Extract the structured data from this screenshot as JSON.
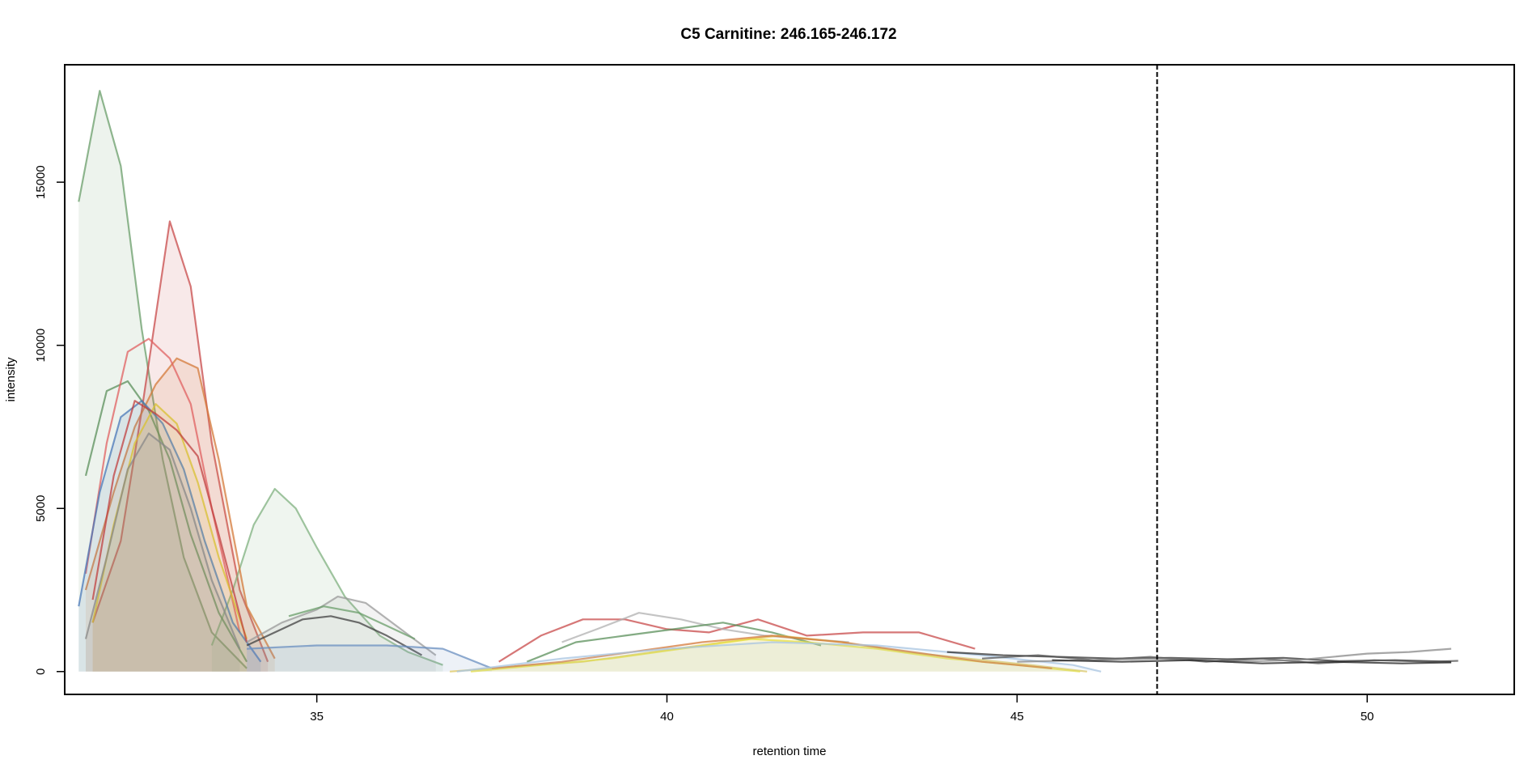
{
  "chart_data": {
    "type": "line",
    "title": "C5 Carnitine: 246.165-246.172",
    "xlabel": "retention time",
    "ylabel": "intensity",
    "xlim": [
      31.4,
      52.1
    ],
    "ylim": [
      -700,
      18600
    ],
    "x_ticks": [
      35,
      40,
      45,
      50
    ],
    "y_ticks": [
      0,
      5000,
      10000,
      15000
    ],
    "x_tick_labels": [
      "35",
      "40",
      "45",
      "50"
    ],
    "y_tick_labels": [
      "0",
      "5000",
      "10000",
      "15000"
    ],
    "grid": false,
    "legend": "none",
    "reference_line": {
      "x": 47.0,
      "style": "dashed",
      "color": "#000000"
    },
    "series": [
      {
        "color": "#6a9e6a",
        "fill": true,
        "x": [
          31.6,
          31.9,
          32.2,
          32.5,
          32.8,
          33.1,
          33.5,
          34.0
        ],
        "values": [
          14400,
          17800,
          15500,
          10500,
          6500,
          3500,
          1200,
          100
        ]
      },
      {
        "color": "#c84a4a",
        "fill": true,
        "x": [
          31.8,
          32.2,
          32.5,
          32.9,
          33.2,
          33.5,
          33.9,
          34.3
        ],
        "values": [
          1500,
          4000,
          8000,
          13800,
          11800,
          7000,
          2500,
          300
        ]
      },
      {
        "color": "#7fb07f",
        "fill": true,
        "x": [
          33.5,
          33.8,
          34.1,
          34.4,
          34.7,
          35.0,
          35.4,
          35.9,
          36.3,
          36.8
        ],
        "values": [
          800,
          2500,
          4500,
          5600,
          5000,
          3800,
          2300,
          1100,
          600,
          200
        ]
      },
      {
        "color": "#5a8f5a",
        "fill": false,
        "x": [
          31.7,
          32.0,
          32.3,
          32.6,
          32.9,
          33.2,
          33.6,
          34.0
        ],
        "values": [
          6000,
          8600,
          8900,
          8000,
          6500,
          4200,
          1800,
          300
        ]
      },
      {
        "color": "#d47a3a",
        "fill": true,
        "x": [
          31.7,
          32.1,
          32.4,
          32.7,
          33.0,
          33.3,
          33.6,
          34.0,
          34.4
        ],
        "values": [
          2500,
          5500,
          7500,
          8800,
          9600,
          9300,
          6500,
          2000,
          400
        ]
      },
      {
        "color": "#e06060",
        "fill": false,
        "x": [
          31.7,
          32.0,
          32.3,
          32.6,
          32.9,
          33.2,
          33.5,
          33.9
        ],
        "values": [
          3000,
          7000,
          9800,
          10200,
          9600,
          8200,
          5000,
          1200
        ]
      },
      {
        "color": "#4a78b8",
        "fill": true,
        "x": [
          31.6,
          31.9,
          32.2,
          32.5,
          32.8,
          33.1,
          33.4,
          33.8,
          34.2
        ],
        "values": [
          2000,
          5500,
          7800,
          8300,
          7600,
          6200,
          4000,
          1500,
          300
        ]
      },
      {
        "color": "#d8c030",
        "fill": true,
        "x": [
          31.8,
          32.1,
          32.4,
          32.7,
          33.0,
          33.3,
          33.6,
          34.0
        ],
        "values": [
          1500,
          4500,
          7000,
          8200,
          7600,
          5800,
          3500,
          1000
        ]
      },
      {
        "color": "#888888",
        "fill": true,
        "x": [
          31.7,
          32.0,
          32.3,
          32.6,
          32.9,
          33.2,
          33.5,
          33.9
        ],
        "values": [
          1000,
          3500,
          6200,
          7300,
          6800,
          5000,
          2800,
          700
        ]
      },
      {
        "color": "#c04040",
        "fill": false,
        "x": [
          31.8,
          32.1,
          32.4,
          32.7,
          33.0,
          33.3,
          33.6,
          34.0
        ],
        "values": [
          2200,
          6000,
          8300,
          7900,
          7400,
          6600,
          4200,
          900
        ]
      },
      {
        "color": "#9a9a9a",
        "fill": true,
        "x": [
          34.0,
          34.5,
          35.0,
          35.3,
          35.7,
          36.2,
          36.7
        ],
        "values": [
          900,
          1500,
          1900,
          2300,
          2100,
          1300,
          500
        ]
      },
      {
        "color": "#404040",
        "fill": false,
        "x": [
          34.0,
          34.4,
          34.8,
          35.2,
          35.6,
          36.0,
          36.5
        ],
        "values": [
          800,
          1200,
          1600,
          1700,
          1500,
          1100,
          500
        ]
      },
      {
        "color": "#6a9e6a",
        "fill": false,
        "x": [
          34.6,
          35.1,
          35.6,
          36.0,
          36.4
        ],
        "values": [
          1700,
          2000,
          1800,
          1400,
          1000
        ]
      },
      {
        "color": "#6a8fc0",
        "fill": true,
        "x": [
          34.0,
          35.0,
          36.0,
          36.8,
          37.5
        ],
        "values": [
          700,
          800,
          800,
          700,
          100
        ]
      },
      {
        "color": "#c84a4a",
        "fill": false,
        "x": [
          37.6,
          38.2,
          38.8,
          39.4,
          40.0,
          40.6,
          41.3,
          42.0,
          42.8,
          43.6,
          44.4
        ],
        "values": [
          300,
          1100,
          1600,
          1600,
          1300,
          1200,
          1600,
          1100,
          1200,
          1200,
          700
        ]
      },
      {
        "color": "#b0b0b0",
        "fill": false,
        "x": [
          38.5,
          39.0,
          39.6,
          40.2,
          40.8,
          41.4,
          42.0,
          42.6
        ],
        "values": [
          900,
          1300,
          1800,
          1600,
          1300,
          1100,
          1000,
          900
        ]
      },
      {
        "color": "#5a8f5a",
        "fill": false,
        "x": [
          38.0,
          38.7,
          39.4,
          40.1,
          40.8,
          41.5,
          42.2
        ],
        "values": [
          300,
          900,
          1100,
          1300,
          1500,
          1200,
          800
        ]
      },
      {
        "color": "#e0c860",
        "fill": true,
        "x": [
          36.9,
          37.8,
          38.8,
          39.8,
          40.8,
          41.6,
          42.5,
          43.4,
          44.3,
          45.2,
          46.0
        ],
        "values": [
          0,
          150,
          300,
          600,
          900,
          1100,
          900,
          600,
          400,
          200,
          0
        ]
      },
      {
        "color": "#e8e040",
        "fill": true,
        "x": [
          37.2,
          38.2,
          39.2,
          40.2,
          41.2,
          42.0,
          43.0,
          44.0,
          45.0,
          45.9
        ],
        "values": [
          0,
          200,
          400,
          700,
          1000,
          900,
          700,
          400,
          200,
          0
        ]
      },
      {
        "color": "#d47a3a",
        "fill": false,
        "x": [
          37.5,
          38.5,
          39.5,
          40.5,
          41.5,
          42.5,
          43.5,
          44.5,
          45.5
        ],
        "values": [
          100,
          300,
          600,
          900,
          1100,
          900,
          600,
          300,
          100
        ]
      },
      {
        "color": "#a8c4e0",
        "fill": true,
        "x": [
          37.0,
          38.5,
          40.0,
          41.5,
          43.0,
          44.5,
          45.8,
          46.2
        ],
        "values": [
          0,
          400,
          700,
          900,
          800,
          500,
          200,
          0
        ]
      },
      {
        "color": "#333333",
        "fill": false,
        "x": [
          44.0,
          44.8,
          45.6,
          46.4,
          47.2,
          48.0,
          48.8,
          49.6,
          50.4,
          51.2
        ],
        "values": [
          600,
          500,
          450,
          400,
          420,
          380,
          420,
          320,
          350,
          300
        ]
      },
      {
        "color": "#555555",
        "fill": false,
        "x": [
          44.5,
          45.3,
          46.1,
          46.9,
          47.7,
          48.5,
          49.3,
          50.1,
          50.9,
          51.3
        ],
        "values": [
          400,
          500,
          350,
          450,
          300,
          400,
          250,
          350,
          300,
          330
        ]
      },
      {
        "color": "#888888",
        "fill": false,
        "x": [
          45.0,
          46.0,
          47.0,
          48.0,
          49.0,
          50.0,
          50.6,
          51.2
        ],
        "values": [
          300,
          350,
          400,
          300,
          350,
          550,
          600,
          700
        ]
      },
      {
        "color": "#222222",
        "fill": false,
        "x": [
          45.5,
          46.5,
          47.5,
          48.5,
          49.5,
          50.5,
          51.2
        ],
        "values": [
          350,
          300,
          350,
          250,
          300,
          250,
          280
        ]
      }
    ]
  }
}
